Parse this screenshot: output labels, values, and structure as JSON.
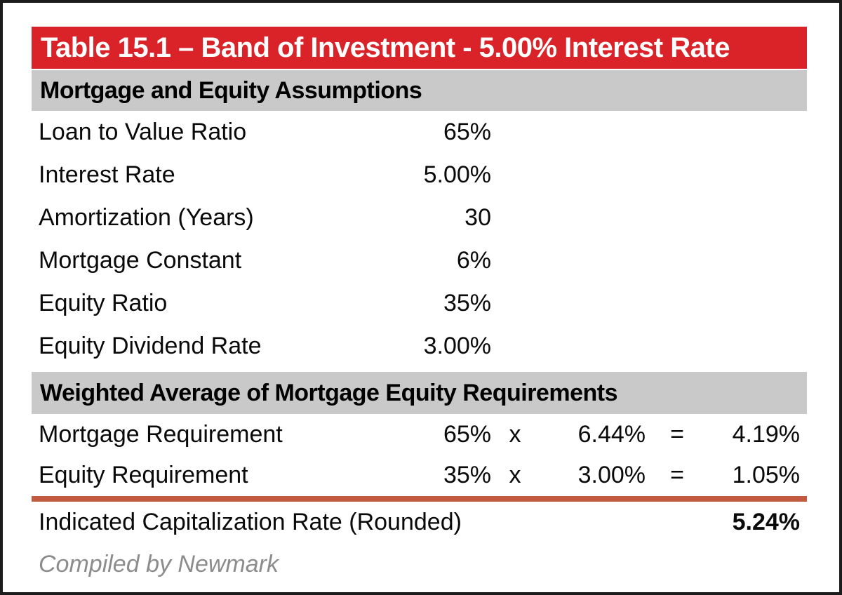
{
  "title": "Table 15.1 – Band of Investment - 5.00% Interest Rate",
  "assumptions": {
    "header": "Mortgage and Equity Assumptions",
    "rows": [
      {
        "label": "Loan to Value Ratio",
        "value": "65%"
      },
      {
        "label": "Interest Rate",
        "value": "5.00%"
      },
      {
        "label": "Amortization (Years)",
        "value": "30"
      },
      {
        "label": "Mortgage Constant",
        "value": "6%"
      },
      {
        "label": "Equity Ratio",
        "value": "35%"
      },
      {
        "label": "Equity Dividend Rate",
        "value": "3.00%"
      }
    ]
  },
  "weighted": {
    "header": "Weighted Average of Mortgage Equity Requirements",
    "rows": [
      {
        "label": "Mortgage Requirement",
        "weight": "65%",
        "op": "x",
        "rate": "6.44%",
        "eq": "=",
        "result": "4.19%"
      },
      {
        "label": "Equity Requirement",
        "weight": "35%",
        "op": "x",
        "rate": "3.00%",
        "eq": "=",
        "result": "1.05%"
      }
    ]
  },
  "summary": {
    "label": "Indicated Capitalization Rate (Rounded)",
    "value": "5.24%"
  },
  "footer": {
    "credit": "Compiled by Newmark"
  },
  "colors": {
    "header_red": "#da2229",
    "band_gray": "#c9c9c9",
    "rule_red": "#c25a40",
    "credit_gray": "#8c8c8c",
    "frame_black": "#1c1c1c"
  }
}
